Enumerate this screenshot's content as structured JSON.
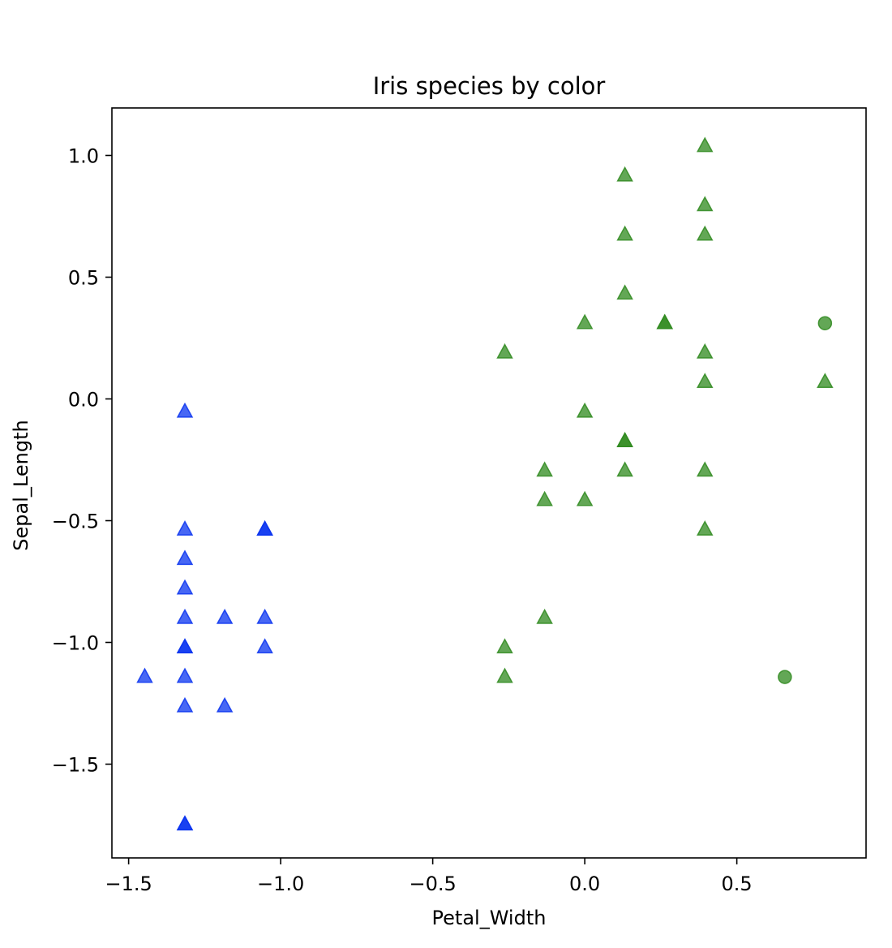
{
  "chart_data": {
    "type": "scatter",
    "title": "Iris species by color",
    "xlabel": "Petal_Width",
    "ylabel": "Sepal_Length",
    "xlim": [
      -1.555,
      0.925
    ],
    "ylim": [
      -1.885,
      1.195
    ],
    "xticks": [
      -1.5,
      -1.0,
      -0.5,
      0.0,
      0.5
    ],
    "xtick_labels": [
      "−1.5",
      "−1.0",
      "−0.5",
      "0.0",
      "0.5"
    ],
    "yticks": [
      1.0,
      0.5,
      0.0,
      -0.5,
      -1.0,
      -1.5
    ],
    "ytick_labels": [
      "1.0",
      "0.5",
      "0.0",
      "−0.5",
      "−1.0",
      "−1.5"
    ],
    "grid": false,
    "legend": "none",
    "series": [
      {
        "color": "#0a34f0",
        "marker": "triangle",
        "points": [
          [
            -1.315,
            -0.053
          ],
          [
            -1.315,
            -0.537
          ],
          [
            -1.315,
            -0.658
          ],
          [
            -1.315,
            -0.779
          ],
          [
            -1.315,
            -0.9
          ],
          [
            -1.315,
            -1.021
          ],
          [
            -1.315,
            -1.021
          ],
          [
            -1.315,
            -1.142
          ],
          [
            -1.315,
            -1.263
          ],
          [
            -1.315,
            -1.748
          ],
          [
            -1.315,
            -1.748
          ],
          [
            -1.447,
            -1.142
          ],
          [
            -1.184,
            -0.9
          ],
          [
            -1.184,
            -1.263
          ],
          [
            -1.052,
            -0.537
          ],
          [
            -1.052,
            -0.537
          ],
          [
            -1.052,
            -0.9
          ],
          [
            -1.052,
            -1.021
          ]
        ]
      },
      {
        "color": "#2f8a1e",
        "marker": "triangle",
        "points": [
          [
            0.395,
            1.038
          ],
          [
            0.132,
            0.917
          ],
          [
            0.395,
            0.795
          ],
          [
            0.132,
            0.674
          ],
          [
            0.395,
            0.674
          ],
          [
            0.132,
            0.432
          ],
          [
            0.0,
            0.311
          ],
          [
            0.263,
            0.311
          ],
          [
            0.263,
            0.311
          ],
          [
            -0.263,
            0.19
          ],
          [
            0.395,
            0.19
          ],
          [
            0.395,
            0.069
          ],
          [
            0.79,
            0.069
          ],
          [
            0.0,
            -0.053
          ],
          [
            0.132,
            -0.174
          ],
          [
            0.132,
            -0.174
          ],
          [
            -0.132,
            -0.295
          ],
          [
            0.132,
            -0.295
          ],
          [
            0.395,
            -0.295
          ],
          [
            -0.132,
            -0.416
          ],
          [
            0.0,
            -0.416
          ],
          [
            0.395,
            -0.537
          ],
          [
            -0.132,
            -0.9
          ],
          [
            -0.263,
            -1.021
          ],
          [
            -0.263,
            -1.142
          ]
        ]
      },
      {
        "color": "#2f8a1e",
        "marker": "circle",
        "points": [
          [
            0.79,
            0.311
          ],
          [
            0.658,
            -1.142
          ]
        ]
      }
    ]
  }
}
